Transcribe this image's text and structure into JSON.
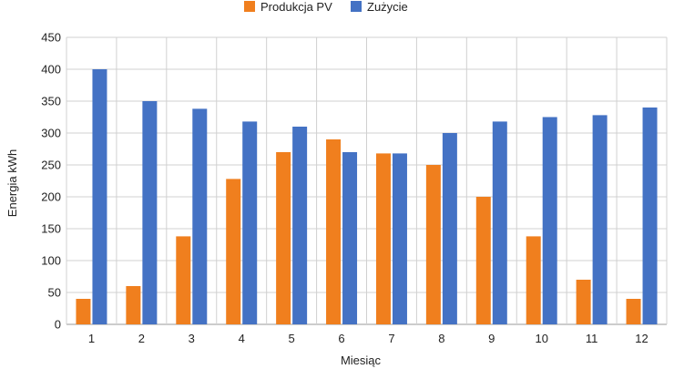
{
  "chart_data": {
    "type": "bar",
    "xlabel": "Miesiąc",
    "ylabel": "Energia kWh",
    "categories": [
      "1",
      "2",
      "3",
      "4",
      "5",
      "6",
      "7",
      "8",
      "9",
      "10",
      "11",
      "12"
    ],
    "ylim": [
      0,
      450
    ],
    "yticks": [
      0,
      50,
      100,
      150,
      200,
      250,
      300,
      350,
      400,
      450
    ],
    "grid": true,
    "legend_position": "top-center",
    "series": [
      {
        "name": "Produkcja PV",
        "color": "#f07f1e",
        "values": [
          40,
          60,
          138,
          228,
          270,
          290,
          268,
          250,
          200,
          138,
          70,
          40
        ]
      },
      {
        "name": "Zużycie",
        "color": "#4472c4",
        "values": [
          400,
          350,
          338,
          318,
          310,
          270,
          268,
          300,
          318,
          325,
          328,
          340
        ]
      }
    ]
  }
}
